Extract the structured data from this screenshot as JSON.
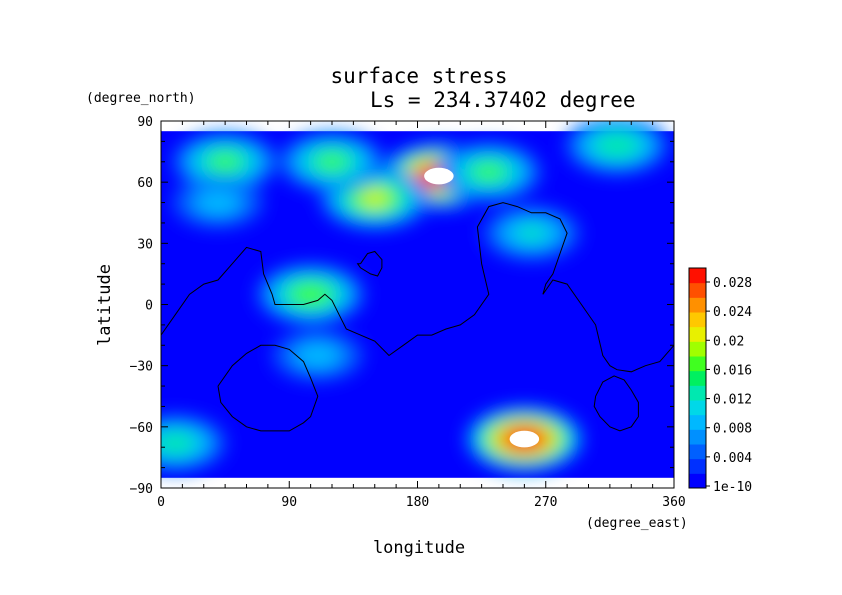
{
  "chart_data": {
    "type": "heatmap",
    "title": "surface stress",
    "subtitle": "Ls = 234.37402 degree",
    "xlabel": "longitude",
    "ylabel": "latitude",
    "x_units": "(degree_east)",
    "y_units": "(degree_north)",
    "xlim": [
      0,
      360
    ],
    "ylim": [
      -90,
      90
    ],
    "x_ticks": [
      "0",
      "90",
      "180",
      "270",
      "360"
    ],
    "y_ticks": [
      "90",
      "60",
      "30",
      "0",
      "−30",
      "−60",
      "−90"
    ],
    "data_extent_lat": [
      -85,
      85
    ],
    "colorbar": {
      "labels": [
        "0.028",
        "0.024",
        "0.02",
        "0.016",
        "0.012",
        "0.008",
        "0.004",
        "1e-10"
      ],
      "min": 0,
      "max": 0.03,
      "colors": [
        "#0000ff",
        "#0030ff",
        "#0060ff",
        "#0090ff",
        "#00b8ff",
        "#00d8e8",
        "#00e8b0",
        "#00f060",
        "#40ff20",
        "#a0ff00",
        "#e8f000",
        "#ffc800",
        "#ff9000",
        "#ff5000",
        "#ff1000"
      ]
    },
    "hotspots": [
      {
        "lon": 195,
        "lat": 63,
        "value": 0.032
      },
      {
        "lon": 255,
        "lat": -66,
        "value": 0.032
      },
      {
        "lon": 150,
        "lat": 52,
        "value": 0.02
      },
      {
        "lon": 105,
        "lat": 5,
        "value": 0.018
      },
      {
        "lon": 45,
        "lat": 70,
        "value": 0.016
      },
      {
        "lon": 120,
        "lat": 70,
        "value": 0.016
      },
      {
        "lon": 230,
        "lat": 65,
        "value": 0.016
      },
      {
        "lon": 320,
        "lat": 78,
        "value": 0.015
      },
      {
        "lon": 10,
        "lat": -68,
        "value": 0.014
      },
      {
        "lon": 260,
        "lat": 35,
        "value": 0.012
      },
      {
        "lon": 40,
        "lat": 50,
        "value": 0.01
      },
      {
        "lon": 110,
        "lat": -25,
        "value": 0.01
      }
    ],
    "contours": [
      {
        "lon": [
          0,
          10,
          20,
          30,
          40,
          50,
          60,
          70,
          72,
          78,
          80,
          90,
          100,
          110,
          115,
          120,
          125,
          130,
          140,
          150,
          160,
          170,
          180,
          190,
          200,
          210,
          220,
          230,
          225,
          222,
          230,
          240,
          250,
          260,
          270,
          280,
          285,
          280,
          275,
          270,
          268,
          275,
          285,
          295,
          305,
          310,
          315,
          320,
          330,
          340,
          350,
          360
        ],
        "lat": [
          -15,
          -5,
          5,
          10,
          12,
          20,
          28,
          26,
          15,
          5,
          0,
          0,
          0,
          2,
          5,
          2,
          -5,
          -12,
          -15,
          -18,
          -25,
          -20,
          -15,
          -15,
          -12,
          -10,
          -5,
          5,
          20,
          38,
          48,
          50,
          48,
          45,
          45,
          42,
          35,
          25,
          15,
          10,
          5,
          12,
          10,
          0,
          -10,
          -25,
          -30,
          -32,
          -33,
          -30,
          -28,
          -20
        ]
      },
      {
        "lon": [
          140,
          145,
          150,
          155,
          155,
          152,
          147,
          140,
          138,
          140
        ],
        "lat": [
          20,
          25,
          26,
          22,
          18,
          14,
          15,
          18,
          20,
          20
        ]
      },
      {
        "lon": [
          40,
          50,
          60,
          70,
          80,
          90,
          100,
          105,
          110,
          105,
          100,
          90,
          80,
          70,
          60,
          50,
          42,
          40
        ],
        "lat": [
          -40,
          -30,
          -24,
          -20,
          -20,
          -22,
          -28,
          -36,
          -45,
          -55,
          -58,
          -62,
          -62,
          -62,
          -60,
          -55,
          -48,
          -40
        ]
      },
      {
        "lon": [
          305,
          310,
          318,
          325,
          330,
          335,
          335,
          330,
          322,
          315,
          308,
          304,
          305
        ],
        "lat": [
          -45,
          -38,
          -35,
          -37,
          -42,
          -48,
          -55,
          -60,
          -62,
          -60,
          -55,
          -50,
          -45
        ]
      }
    ]
  }
}
